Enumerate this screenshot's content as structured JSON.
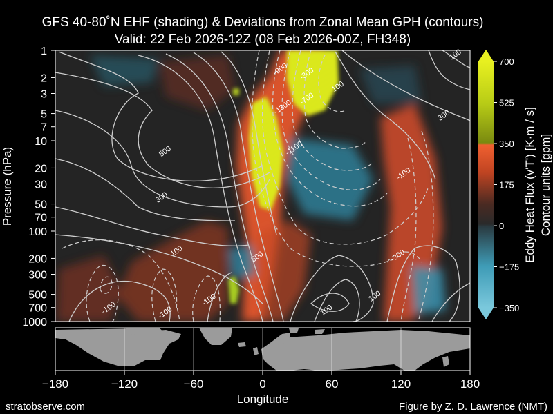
{
  "chart_data": {
    "type": "heatmap",
    "title_line1": "GFS 40-80˚N EHF (shading) & Deviations from Zonal Mean GPH (contours)",
    "title_line2": "Valid: 22 Feb 2026-12Z  (08 Feb 2026-00Z, FH348)",
    "xlabel": "Longitude",
    "ylabel": "Pressure (hPa)",
    "xlim": [
      -180,
      180
    ],
    "ylim": [
      1000,
      1
    ],
    "y_scale": "log",
    "x_ticks": [
      -180,
      -120,
      -60,
      0,
      60,
      120,
      180
    ],
    "x_tick_labels": [
      "−180",
      "−120",
      "−60",
      "0",
      "60",
      "120",
      "180"
    ],
    "y_ticks": [
      1,
      2,
      3,
      5,
      7,
      10,
      20,
      30,
      50,
      70,
      100,
      200,
      300,
      500,
      700,
      1000
    ],
    "y_tick_labels": [
      "1",
      "2",
      "3",
      "5",
      "7",
      "10",
      "20",
      "30",
      "50",
      "70",
      "100",
      "200",
      "300",
      "500",
      "700",
      "1000"
    ],
    "colorbar": {
      "label1": "Eddy Heat Flux (v'T') [K·m / s]",
      "label2": "Contour units [gpm]",
      "range": [
        -350,
        700
      ],
      "ticks": [
        -350,
        -175,
        0,
        175,
        350,
        525,
        700
      ],
      "tick_labels": [
        "−350",
        "−175",
        "0",
        "175",
        "350",
        "525",
        "700"
      ],
      "extend": "both"
    },
    "heat_flux_features": [
      {
        "lon": 40,
        "p_top": 1,
        "p_bottom": 5,
        "peak": 700
      },
      {
        "lon": -5,
        "p_top": 5,
        "p_bottom": 60,
        "peak": 700
      },
      {
        "lon": -30,
        "p_top": 350,
        "p_bottom": 700,
        "peak": 450
      },
      {
        "lon": -28,
        "p_top": 2.5,
        "p_bottom": 3.5,
        "peak": 400
      },
      {
        "lon": 125,
        "p_top": 20,
        "p_bottom": 300,
        "peak": 300
      },
      {
        "lon": 10,
        "p_top": 10,
        "p_bottom": 40,
        "peak": -250
      },
      {
        "lon": 140,
        "p_top": 350,
        "p_bottom": 700,
        "peak": -200
      },
      {
        "lon": -25,
        "p_top": 200,
        "p_bottom": 350,
        "peak": -150
      }
    ],
    "contour_labels": [
      {
        "text": "-900",
        "lon": 15,
        "p": 1.6
      },
      {
        "text": "-300",
        "lon": 38,
        "p": 1.8
      },
      {
        "text": "-700",
        "lon": 38,
        "p": 3.4
      },
      {
        "text": "-1300",
        "lon": 17,
        "p": 4.2
      },
      {
        "text": "100",
        "lon": 65,
        "p": 2.5
      },
      {
        "text": "100",
        "lon": 167,
        "p": 1.1
      },
      {
        "text": "300",
        "lon": 157,
        "p": 5.2
      },
      {
        "text": "-1100",
        "lon": 27,
        "p": 12
      },
      {
        "text": "500",
        "lon": -85,
        "p": 13
      },
      {
        "text": "-100",
        "lon": 122,
        "p": 23
      },
      {
        "text": "300",
        "lon": -88,
        "p": 42
      },
      {
        "text": "100",
        "lon": -75,
        "p": 165
      },
      {
        "text": "300",
        "lon": -5,
        "p": 190
      },
      {
        "text": "-300",
        "lon": 117,
        "p": 185
      },
      {
        "text": "-100",
        "lon": -47,
        "p": 570
      },
      {
        "text": "100",
        "lon": 97,
        "p": 520
      },
      {
        "text": "100",
        "lon": 55,
        "p": 740
      },
      {
        "text": "-100",
        "lon": -134,
        "p": 700
      },
      {
        "text": "-100",
        "lon": -85,
        "p": 790
      }
    ]
  },
  "footer": {
    "left": "stratobserve.com",
    "right": "Figure by Z. D. Lawrence (NMT)"
  },
  "colors": {
    "background": "#000000",
    "plot_background": "#242424",
    "positive_flux": "#f05a2a",
    "strong_flux": "#d8ea1a",
    "negative_flux": "#3e9bb6",
    "contour": "#cfcfcf",
    "land": "#9b9b9b"
  }
}
